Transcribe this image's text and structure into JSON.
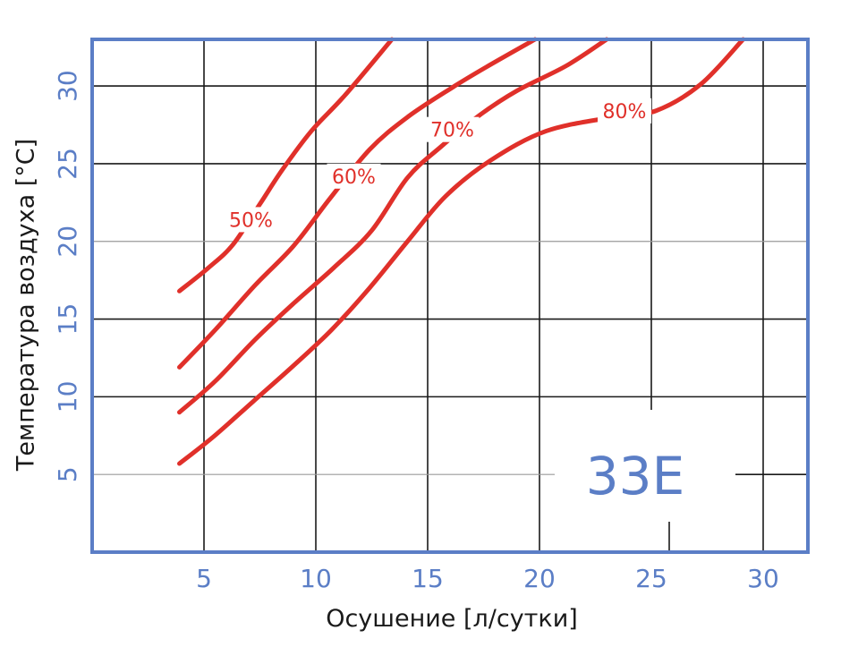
{
  "chart_data": {
    "type": "line",
    "model_label": "33E",
    "xlabel": "Осушение [л/сутки]",
    "ylabel": "Температура воздуха [°C]",
    "xlim": [
      0,
      32
    ],
    "ylim": [
      0,
      33
    ],
    "xticks": [
      5,
      10,
      15,
      20,
      25,
      30
    ],
    "yticks": [
      5,
      10,
      15,
      20,
      25,
      30
    ],
    "grid": true,
    "colors": {
      "frame": "#5b7ec6",
      "curves": "#e0302a",
      "ticks": "#5b7ec6"
    },
    "series": [
      {
        "name": "50%",
        "points": [
          [
            3.9,
            16.8
          ],
          [
            5.2,
            18.3
          ],
          [
            6.3,
            19.8
          ],
          [
            7.5,
            22.4
          ],
          [
            8.5,
            24.6
          ],
          [
            9.8,
            27.1
          ],
          [
            11.3,
            29.4
          ],
          [
            13.4,
            33.0
          ]
        ]
      },
      {
        "name": "60%",
        "points": [
          [
            3.9,
            11.9
          ],
          [
            5.5,
            14.3
          ],
          [
            7.3,
            17.2
          ],
          [
            9.0,
            19.7
          ],
          [
            10.6,
            22.7
          ],
          [
            12.4,
            25.9
          ],
          [
            14.1,
            28.0
          ],
          [
            16.1,
            29.9
          ],
          [
            17.6,
            31.2
          ],
          [
            19.8,
            33.0
          ]
        ]
      },
      {
        "name": "70%",
        "points": [
          [
            3.9,
            9.0
          ],
          [
            5.5,
            11.0
          ],
          [
            7.3,
            13.7
          ],
          [
            9.0,
            16.0
          ],
          [
            10.8,
            18.3
          ],
          [
            12.5,
            20.7
          ],
          [
            14.1,
            24.1
          ],
          [
            15.6,
            26.1
          ],
          [
            17.3,
            28.1
          ],
          [
            19.0,
            29.7
          ],
          [
            21.2,
            31.3
          ],
          [
            23.0,
            33.0
          ]
        ]
      },
      {
        "name": "80%",
        "points": [
          [
            3.9,
            5.7
          ],
          [
            5.4,
            7.4
          ],
          [
            7.2,
            9.7
          ],
          [
            9.0,
            12.0
          ],
          [
            10.7,
            14.3
          ],
          [
            12.4,
            17.0
          ],
          [
            14.1,
            20.0
          ],
          [
            15.8,
            22.9
          ],
          [
            17.8,
            25.2
          ],
          [
            20.3,
            27.1
          ],
          [
            23.3,
            28.0
          ],
          [
            25.2,
            28.4
          ],
          [
            27.2,
            30.1
          ],
          [
            29.1,
            33.0
          ]
        ]
      }
    ],
    "labels": [
      {
        "text": "50%",
        "x": 7.1,
        "y": 21.4
      },
      {
        "text": "60%",
        "x": 11.7,
        "y": 24.2
      },
      {
        "text": "70%",
        "x": 16.1,
        "y": 27.2
      },
      {
        "text": "80%",
        "x": 23.8,
        "y": 28.4
      }
    ]
  }
}
